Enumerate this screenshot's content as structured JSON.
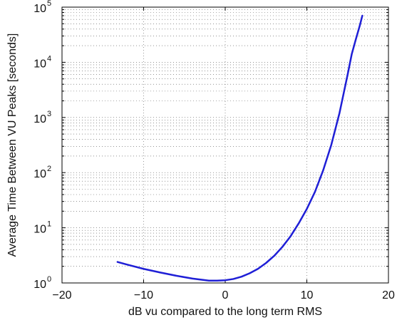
{
  "chart_data": {
    "type": "line",
    "title": "",
    "xlabel": "dB vu compared to the long term RMS",
    "ylabel": "Average Time Between VU Peaks [seconds]",
    "xlim": [
      -20,
      20
    ],
    "ylim": [
      1,
      100000
    ],
    "yscale": "log",
    "grid": true,
    "x_ticks": [
      -20,
      -10,
      0,
      10,
      20
    ],
    "x_tick_labels": [
      "−20",
      "−10",
      "0",
      "10",
      "20"
    ],
    "y_ticks": [
      1,
      10,
      100,
      1000,
      10000,
      100000
    ],
    "y_tick_labels": [
      {
        "base": "10",
        "exp": "0"
      },
      {
        "base": "10",
        "exp": "1"
      },
      {
        "base": "10",
        "exp": "2"
      },
      {
        "base": "10",
        "exp": "3"
      },
      {
        "base": "10",
        "exp": "4"
      },
      {
        "base": "10",
        "exp": "5"
      }
    ],
    "series": [
      {
        "color": "#1f1fd6",
        "x": [
          -13.2,
          -12,
          -10,
          -8,
          -6,
          -4,
          -2,
          -1,
          0,
          1,
          2,
          3,
          4,
          5,
          6,
          7,
          8,
          9,
          10,
          11,
          12,
          13,
          14,
          15,
          15.5,
          16,
          16.5,
          16.8
        ],
        "y": [
          2.4,
          2.15,
          1.8,
          1.55,
          1.35,
          1.2,
          1.1,
          1.1,
          1.12,
          1.18,
          1.3,
          1.5,
          1.8,
          2.3,
          3.1,
          4.5,
          7,
          12,
          22,
          45,
          110,
          320,
          1200,
          6000,
          14000,
          26000,
          47000,
          70000
        ]
      }
    ]
  }
}
